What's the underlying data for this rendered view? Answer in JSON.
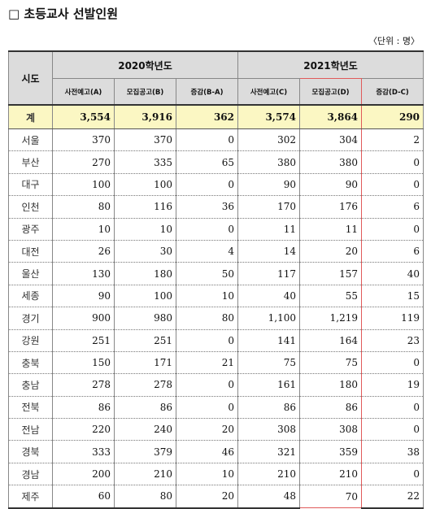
{
  "title": "□ 초등교사 선발인원",
  "unit": "〈단위 : 명〉",
  "headers": {
    "region": "시도",
    "year2020": "2020학년도",
    "year2021": "2021학년도",
    "sub": [
      "사전예고(A)",
      "모집공고(B)",
      "증감(B-A)",
      "사전예고(C)",
      "모집공고(D)",
      "증감(D-C)"
    ]
  },
  "total": {
    "label": "계",
    "values": [
      "3,554",
      "3,916",
      "362",
      "3,574",
      "3,864",
      "290"
    ]
  },
  "rows": [
    {
      "region": "서울",
      "values": [
        "370",
        "370",
        "0",
        "302",
        "304",
        "2"
      ]
    },
    {
      "region": "부산",
      "values": [
        "270",
        "335",
        "65",
        "380",
        "380",
        "0"
      ]
    },
    {
      "region": "대구",
      "values": [
        "100",
        "100",
        "0",
        "90",
        "90",
        "0"
      ]
    },
    {
      "region": "인천",
      "values": [
        "80",
        "116",
        "36",
        "170",
        "176",
        "6"
      ]
    },
    {
      "region": "광주",
      "values": [
        "10",
        "10",
        "0",
        "11",
        "11",
        "0"
      ]
    },
    {
      "region": "대전",
      "values": [
        "26",
        "30",
        "4",
        "14",
        "20",
        "6"
      ]
    },
    {
      "region": "울산",
      "values": [
        "130",
        "180",
        "50",
        "117",
        "157",
        "40"
      ]
    },
    {
      "region": "세종",
      "values": [
        "90",
        "100",
        "10",
        "40",
        "55",
        "15"
      ]
    },
    {
      "region": "경기",
      "values": [
        "900",
        "980",
        "80",
        "1,100",
        "1,219",
        "119"
      ]
    },
    {
      "region": "강원",
      "values": [
        "251",
        "251",
        "0",
        "141",
        "164",
        "23"
      ]
    },
    {
      "region": "충북",
      "values": [
        "150",
        "171",
        "21",
        "75",
        "75",
        "0"
      ]
    },
    {
      "region": "충남",
      "values": [
        "278",
        "278",
        "0",
        "161",
        "180",
        "19"
      ]
    },
    {
      "region": "전북",
      "values": [
        "86",
        "86",
        "0",
        "86",
        "86",
        "0"
      ]
    },
    {
      "region": "전남",
      "values": [
        "220",
        "240",
        "20",
        "308",
        "308",
        "0"
      ]
    },
    {
      "region": "경북",
      "values": [
        "333",
        "379",
        "46",
        "321",
        "359",
        "38"
      ]
    },
    {
      "region": "경남",
      "values": [
        "200",
        "210",
        "10",
        "210",
        "210",
        "0"
      ]
    },
    {
      "region": "제주",
      "values": [
        "60",
        "80",
        "20",
        "48",
        "70",
        "22"
      ]
    }
  ]
}
